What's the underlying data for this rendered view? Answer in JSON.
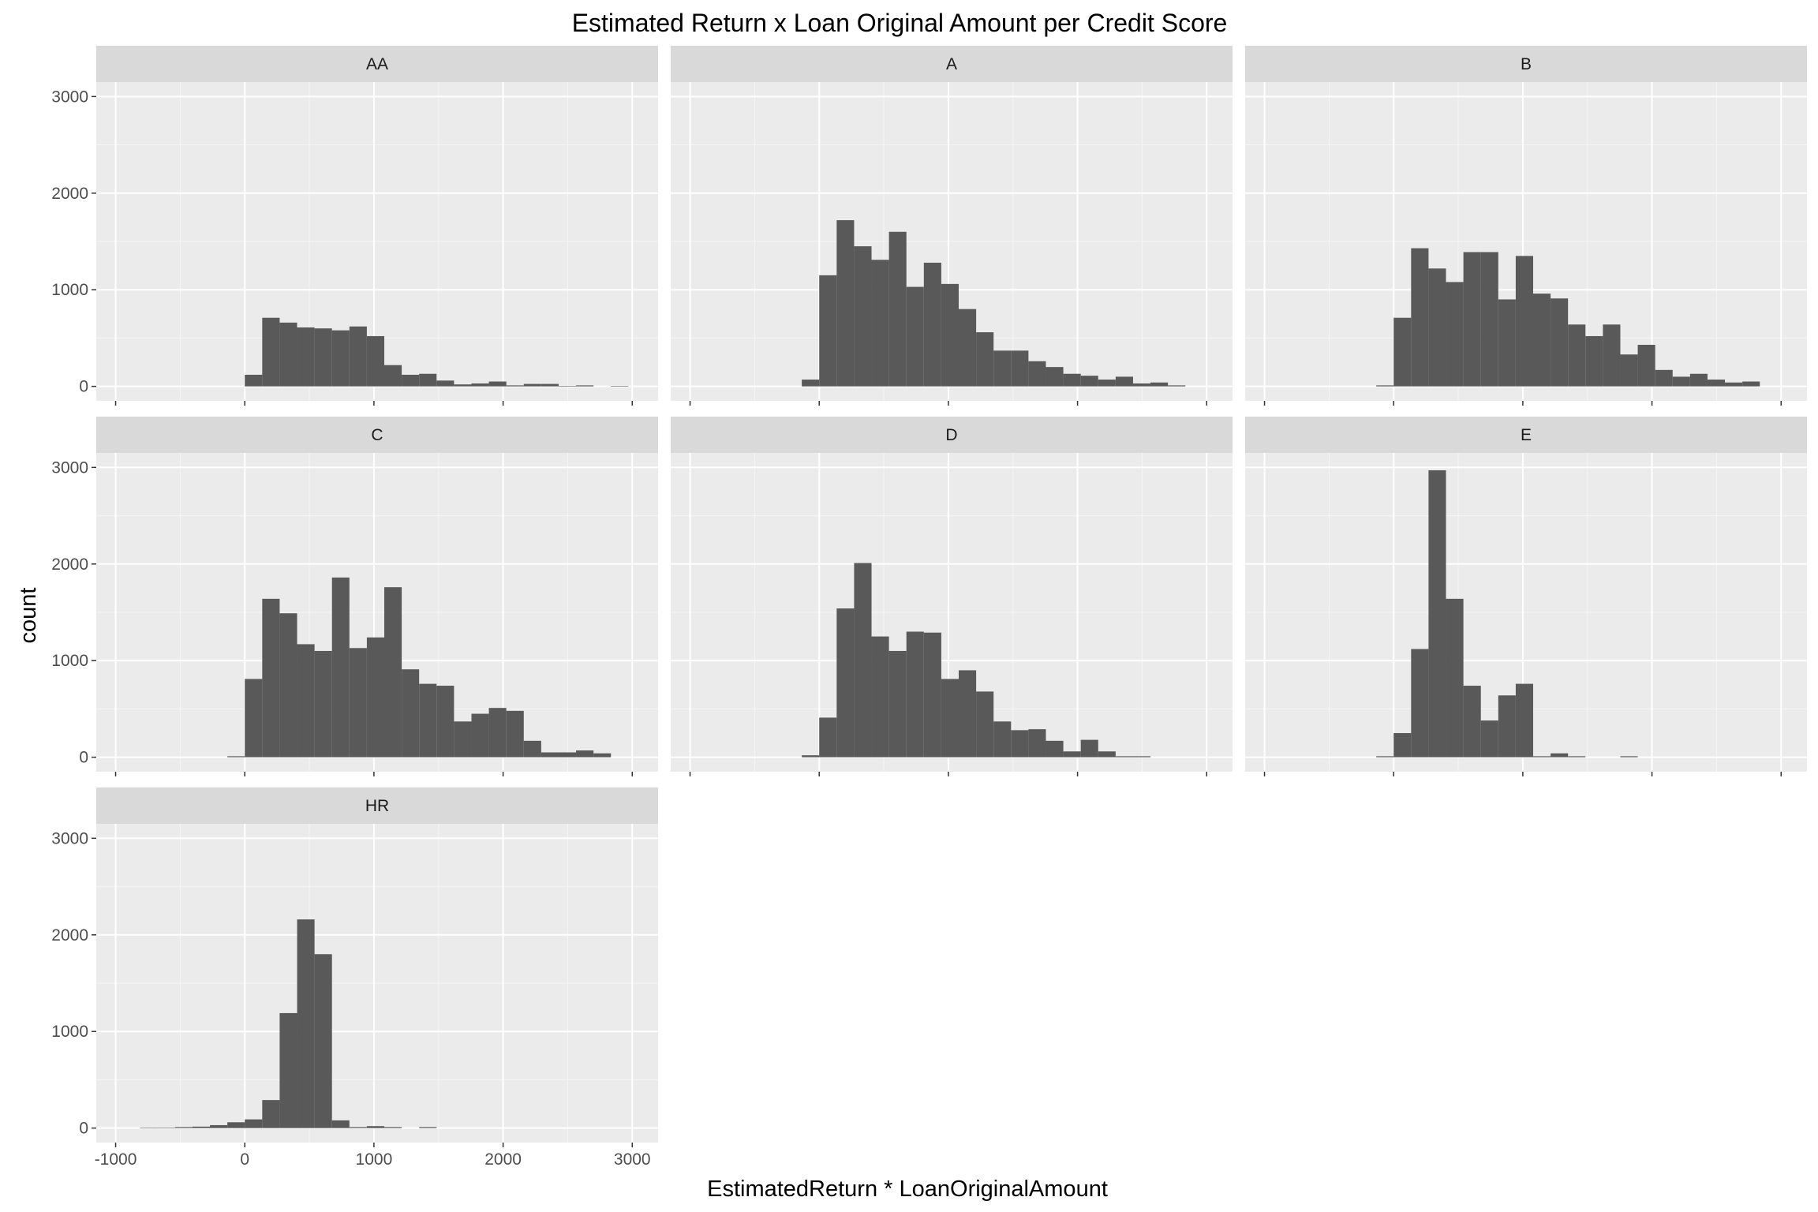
{
  "chart_data": {
    "type": "bar",
    "title": "Estimated Return x Loan Original Amount per Credit Score",
    "xlabel": "EstimatedReturn * LoanOriginalAmount",
    "ylabel": "count",
    "xlim": [
      -1150,
      3200
    ],
    "ylim": [
      -150,
      3150
    ],
    "x_ticks": [
      "-1000",
      "0",
      "1000",
      "2000",
      "3000"
    ],
    "y_ticks": [
      "0",
      "1000",
      "2000",
      "3000"
    ],
    "grid": true,
    "bin_width": 135,
    "panels": [
      {
        "label": "AA",
        "x": [
          0,
          135,
          270,
          405,
          540,
          675,
          810,
          945,
          1080,
          1215,
          1350,
          1485,
          1620,
          1755,
          1890,
          2025,
          2160,
          2295,
          2430,
          2565,
          2700,
          2835
        ],
        "values": [
          120,
          710,
          660,
          610,
          600,
          580,
          620,
          520,
          220,
          120,
          130,
          60,
          20,
          30,
          50,
          10,
          25,
          25,
          5,
          10,
          0,
          5
        ]
      },
      {
        "label": "A",
        "x": [
          -135,
          0,
          135,
          270,
          405,
          540,
          675,
          810,
          945,
          1080,
          1215,
          1350,
          1485,
          1620,
          1755,
          1890,
          2025,
          2160,
          2295,
          2430,
          2565,
          2700,
          2835
        ],
        "values": [
          70,
          1150,
          1720,
          1450,
          1310,
          1600,
          1030,
          1280,
          1060,
          800,
          560,
          370,
          370,
          260,
          200,
          130,
          110,
          70,
          100,
          30,
          40,
          10,
          0
        ]
      },
      {
        "label": "B",
        "x": [
          -135,
          0,
          135,
          270,
          405,
          540,
          675,
          810,
          945,
          1080,
          1215,
          1350,
          1485,
          1620,
          1755,
          1890,
          2025,
          2160,
          2295,
          2430,
          2565,
          2700,
          2835
        ],
        "values": [
          10,
          710,
          1430,
          1220,
          1080,
          1390,
          1390,
          900,
          1350,
          960,
          910,
          640,
          520,
          640,
          330,
          430,
          170,
          100,
          130,
          70,
          40,
          50,
          0
        ]
      },
      {
        "label": "C",
        "x": [
          -135,
          0,
          135,
          270,
          405,
          540,
          675,
          810,
          945,
          1080,
          1215,
          1350,
          1485,
          1620,
          1755,
          1890,
          2025,
          2160,
          2295,
          2430,
          2565,
          2700,
          2835
        ],
        "values": [
          10,
          810,
          1640,
          1490,
          1170,
          1100,
          1860,
          1130,
          1240,
          1760,
          910,
          760,
          740,
          370,
          450,
          510,
          480,
          170,
          50,
          50,
          70,
          40,
          0
        ]
      },
      {
        "label": "D",
        "x": [
          -135,
          0,
          135,
          270,
          405,
          540,
          675,
          810,
          945,
          1080,
          1215,
          1350,
          1485,
          1620,
          1755,
          1890,
          2025,
          2160,
          2295,
          2430
        ],
        "values": [
          20,
          410,
          1540,
          2010,
          1250,
          1100,
          1300,
          1290,
          810,
          900,
          680,
          370,
          280,
          290,
          170,
          60,
          180,
          60,
          10,
          10
        ]
      },
      {
        "label": "E",
        "x": [
          -135,
          0,
          135,
          270,
          405,
          540,
          675,
          810,
          945,
          1080,
          1215,
          1350,
          1485,
          1620,
          1755,
          1890
        ],
        "values": [
          10,
          250,
          1120,
          2970,
          1640,
          740,
          380,
          640,
          760,
          10,
          40,
          10,
          0,
          0,
          10,
          0
        ]
      },
      {
        "label": "HR",
        "x": [
          -810,
          -675,
          -540,
          -405,
          -270,
          -135,
          0,
          135,
          270,
          405,
          540,
          675,
          810,
          945,
          1080,
          1215,
          1350
        ],
        "values": [
          5,
          5,
          10,
          15,
          30,
          60,
          90,
          290,
          1190,
          2160,
          1800,
          80,
          10,
          20,
          10,
          0,
          10
        ]
      }
    ]
  }
}
